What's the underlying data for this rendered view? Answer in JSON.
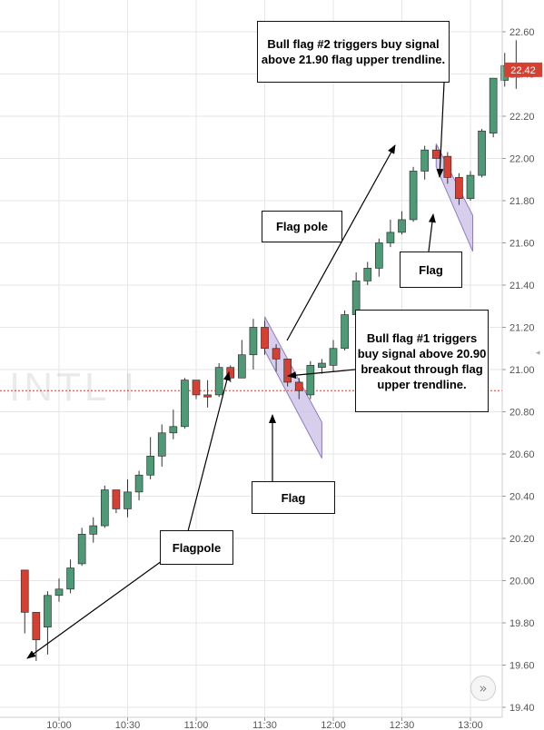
{
  "watermark": "INTL I",
  "nav_button_icon": "double-chevron-right-icon",
  "nav_button_glyph": "»",
  "chart_data": {
    "type": "candlestick",
    "x_ticks": [
      "10:00",
      "10:30",
      "11:00",
      "11:30",
      "12:00",
      "12:30",
      "13:00"
    ],
    "y_ticks": [
      "19.40",
      "19.60",
      "19.80",
      "20.00",
      "20.20",
      "20.40",
      "20.60",
      "20.80",
      "21.00",
      "21.20",
      "21.40",
      "21.60",
      "21.80",
      "22.00",
      "22.20",
      "22.40",
      "22.60"
    ],
    "ylim": [
      19.4,
      22.6
    ],
    "current_price": 22.42,
    "current_price_label": "22.42",
    "reference_price": 20.9,
    "up_color": "#4e9a76",
    "down_color": "#d64032",
    "candles": [
      {
        "t": "09:45",
        "o": 20.05,
        "h": 20.05,
        "l": 19.75,
        "c": 19.85
      },
      {
        "t": "09:50",
        "o": 19.85,
        "h": 19.85,
        "l": 19.62,
        "c": 19.72
      },
      {
        "t": "09:55",
        "o": 19.78,
        "h": 19.95,
        "l": 19.65,
        "c": 19.93
      },
      {
        "t": "10:00",
        "o": 19.93,
        "h": 20.01,
        "l": 19.9,
        "c": 19.96
      },
      {
        "t": "10:05",
        "o": 19.96,
        "h": 20.1,
        "l": 19.94,
        "c": 20.06
      },
      {
        "t": "10:10",
        "o": 20.08,
        "h": 20.25,
        "l": 20.07,
        "c": 20.22
      },
      {
        "t": "10:15",
        "o": 20.22,
        "h": 20.3,
        "l": 20.18,
        "c": 20.26
      },
      {
        "t": "10:20",
        "o": 20.26,
        "h": 20.45,
        "l": 20.25,
        "c": 20.43
      },
      {
        "t": "10:25",
        "o": 20.43,
        "h": 20.43,
        "l": 20.32,
        "c": 20.34
      },
      {
        "t": "10:30",
        "o": 20.34,
        "h": 20.48,
        "l": 20.3,
        "c": 20.42
      },
      {
        "t": "10:35",
        "o": 20.42,
        "h": 20.52,
        "l": 20.38,
        "c": 20.5
      },
      {
        "t": "10:40",
        "o": 20.5,
        "h": 20.68,
        "l": 20.48,
        "c": 20.59
      },
      {
        "t": "10:45",
        "o": 20.59,
        "h": 20.74,
        "l": 20.54,
        "c": 20.7
      },
      {
        "t": "10:50",
        "o": 20.7,
        "h": 20.81,
        "l": 20.67,
        "c": 20.73
      },
      {
        "t": "10:55",
        "o": 20.73,
        "h": 20.96,
        "l": 20.72,
        "c": 20.95
      },
      {
        "t": "11:00",
        "o": 20.95,
        "h": 20.95,
        "l": 20.86,
        "c": 20.88
      },
      {
        "t": "11:05",
        "o": 20.88,
        "h": 20.95,
        "l": 20.82,
        "c": 20.87
      },
      {
        "t": "11:10",
        "o": 20.88,
        "h": 21.03,
        "l": 20.87,
        "c": 21.01
      },
      {
        "t": "11:15",
        "o": 21.01,
        "h": 21.02,
        "l": 20.94,
        "c": 20.96
      },
      {
        "t": "11:20",
        "o": 20.96,
        "h": 21.14,
        "l": 20.96,
        "c": 21.07
      },
      {
        "t": "11:25",
        "o": 21.07,
        "h": 21.24,
        "l": 21.0,
        "c": 21.2
      },
      {
        "t": "11:30",
        "o": 21.2,
        "h": 21.23,
        "l": 21.07,
        "c": 21.1
      },
      {
        "t": "11:35",
        "o": 21.1,
        "h": 21.12,
        "l": 20.99,
        "c": 21.05
      },
      {
        "t": "11:40",
        "o": 21.05,
        "h": 21.05,
        "l": 20.92,
        "c": 20.94
      },
      {
        "t": "11:45",
        "o": 20.94,
        "h": 20.96,
        "l": 20.86,
        "c": 20.9
      },
      {
        "t": "11:50",
        "o": 20.88,
        "h": 21.04,
        "l": 20.86,
        "c": 21.02
      },
      {
        "t": "11:55",
        "o": 21.01,
        "h": 21.05,
        "l": 20.98,
        "c": 21.03
      },
      {
        "t": "12:00",
        "o": 21.02,
        "h": 21.14,
        "l": 20.99,
        "c": 21.1
      },
      {
        "t": "12:05",
        "o": 21.1,
        "h": 21.28,
        "l": 21.09,
        "c": 21.26
      },
      {
        "t": "12:10",
        "o": 21.26,
        "h": 21.46,
        "l": 21.25,
        "c": 21.42
      },
      {
        "t": "12:15",
        "o": 21.42,
        "h": 21.51,
        "l": 21.4,
        "c": 21.48
      },
      {
        "t": "12:20",
        "o": 21.48,
        "h": 21.62,
        "l": 21.44,
        "c": 21.6
      },
      {
        "t": "12:25",
        "o": 21.6,
        "h": 21.71,
        "l": 21.58,
        "c": 21.65
      },
      {
        "t": "12:30",
        "o": 21.65,
        "h": 21.75,
        "l": 21.64,
        "c": 21.71
      },
      {
        "t": "12:35",
        "o": 21.71,
        "h": 21.96,
        "l": 21.7,
        "c": 21.94
      },
      {
        "t": "12:40",
        "o": 21.94,
        "h": 22.06,
        "l": 21.9,
        "c": 22.04
      },
      {
        "t": "12:45",
        "o": 22.04,
        "h": 22.06,
        "l": 22.0,
        "c": 22.0
      },
      {
        "t": "12:50",
        "o": 22.01,
        "h": 22.03,
        "l": 21.88,
        "c": 21.91
      },
      {
        "t": "12:55",
        "o": 21.91,
        "h": 21.93,
        "l": 21.78,
        "c": 21.81
      },
      {
        "t": "13:00",
        "o": 21.81,
        "h": 21.94,
        "l": 21.8,
        "c": 21.92
      },
      {
        "t": "13:05",
        "o": 21.92,
        "h": 22.14,
        "l": 21.91,
        "c": 22.13
      },
      {
        "t": "13:10",
        "o": 22.12,
        "h": 22.38,
        "l": 22.1,
        "c": 22.38
      },
      {
        "t": "13:15",
        "o": 22.37,
        "h": 22.5,
        "l": 22.34,
        "c": 22.44
      },
      {
        "t": "13:20",
        "o": 22.42,
        "h": 22.56,
        "l": 22.33,
        "c": 22.42
      }
    ],
    "annotations": [
      {
        "text": "Bull flag #2 triggers buy signal above 21.90 flag upper trendline."
      },
      {
        "text": "Flag pole"
      },
      {
        "text": "Flag"
      },
      {
        "text": "Bull flag #1 triggers buy signal above 20.90 breakout through flag upper trendline."
      },
      {
        "text": "Flag"
      },
      {
        "text": "Flagpole"
      }
    ]
  }
}
